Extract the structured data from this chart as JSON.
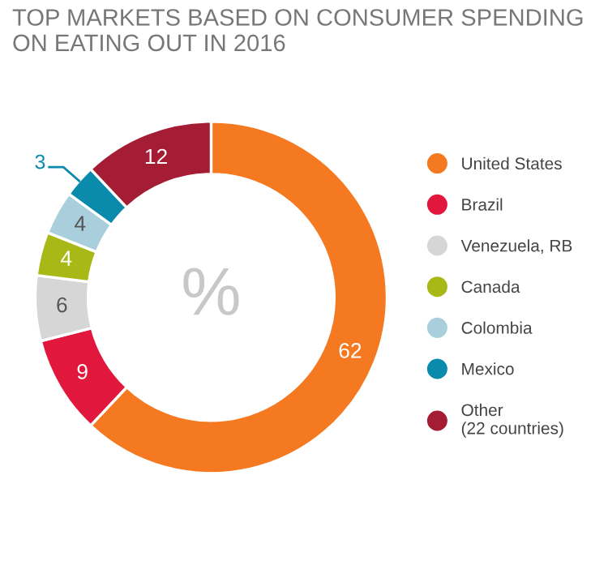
{
  "chart_data": {
    "type": "donut",
    "title": "TOP MARKETS BASED ON CONSUMER SPENDING ON EATING OUT IN 2016",
    "categories": [
      "United States",
      "Brazil",
      "Venezuela, RB",
      "Canada",
      "Colombia",
      "Mexico",
      "Other (22 countries)"
    ],
    "values": [
      62,
      9,
      6,
      4,
      4,
      3,
      12
    ],
    "colors": [
      "#f47920",
      "#e2173d",
      "#d6d6d6",
      "#a8b816",
      "#a9cfdc",
      "#0a8bab",
      "#a51d35"
    ],
    "data_labels": true,
    "legend": "right",
    "annotations": [
      "%"
    ]
  }
}
